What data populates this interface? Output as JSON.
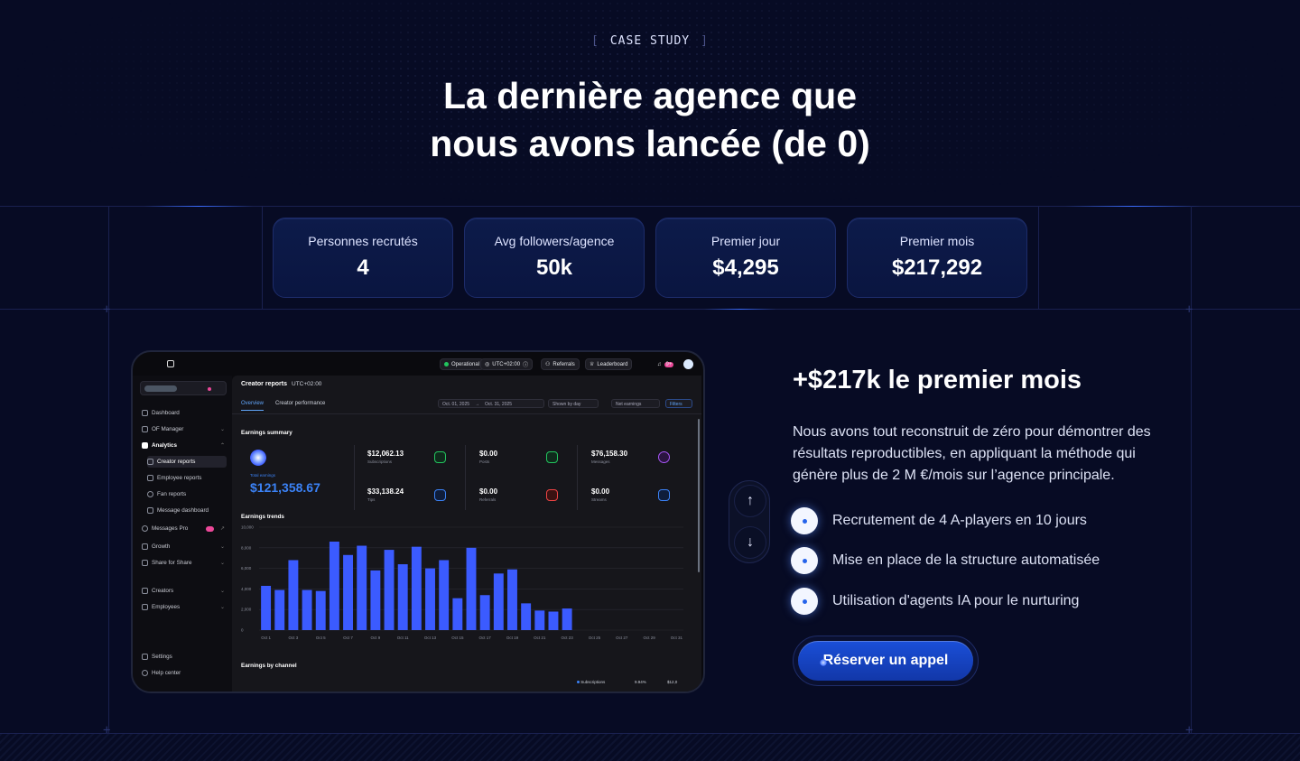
{
  "header": {
    "eyebrow_open": "[",
    "eyebrow": "CASE STUDY",
    "eyebrow_close": "]",
    "title_line1": "La dernière agence que",
    "title_line2": "nous avons lancée (de 0)"
  },
  "stats": [
    {
      "label": "Personnes recrutés",
      "value": "4"
    },
    {
      "label": "Avg followers/agence",
      "value": "50k"
    },
    {
      "label": "Premier jour",
      "value": "$4,295"
    },
    {
      "label": "Premier mois",
      "value": "$217,292"
    }
  ],
  "dashboard": {
    "topbar": {
      "status": "Operational",
      "timezone": "UTC+02:00",
      "referrals": "Referrals",
      "leaderboard": "Leaderboard",
      "notif_count": "9+"
    },
    "sidebar": {
      "items": [
        {
          "label": "Dashboard"
        },
        {
          "label": "OF Manager"
        },
        {
          "label": "Analytics"
        },
        {
          "label": "Creator reports"
        },
        {
          "label": "Employee reports"
        },
        {
          "label": "Fan reports"
        },
        {
          "label": "Message dashboard"
        },
        {
          "label": "Messages Pro"
        },
        {
          "label": "Growth"
        },
        {
          "label": "Share for Share"
        },
        {
          "label": "Creators"
        },
        {
          "label": "Employees"
        },
        {
          "label": "Settings"
        },
        {
          "label": "Help center"
        }
      ]
    },
    "main": {
      "title": "Creator reports",
      "timezone": "UTC+02:00",
      "tabs": [
        "Overview",
        "Creator performance"
      ],
      "date_from": "Oct. 01, 2025",
      "date_to": "Oct. 31, 2025",
      "group_by": "Shown by day",
      "metric": "Net earnings",
      "filters": "Filters",
      "summary_title": "Earnings summary",
      "total_label": "Total earnings",
      "total_value": "$121,358.67",
      "kpis": [
        {
          "value": "$12,062.13",
          "label": "Subscriptions",
          "color": "#22c55e"
        },
        {
          "value": "$0.00",
          "label": "Posts",
          "color": "#22c55e"
        },
        {
          "value": "$76,158.30",
          "label": "Messages",
          "color": "#a855f7"
        },
        {
          "value": "$33,138.24",
          "label": "Tips",
          "color": "#3b82f6"
        },
        {
          "value": "$0.00",
          "label": "Referrals",
          "color": "#ef4444"
        },
        {
          "value": "$0.00",
          "label": "Streams",
          "color": "#3b82f6"
        }
      ],
      "trends_title": "Earnings trends",
      "channel_title": "Earnings by channel",
      "channel_row": {
        "name": "Subscriptions",
        "pct": "9.94%",
        "amount": "$12,0"
      }
    }
  },
  "chart_data": {
    "type": "bar",
    "title": "Earnings trends",
    "ylim": [
      0,
      10000
    ],
    "yticks": [
      "10,000",
      "8,000",
      "6,000",
      "4,000",
      "2,000",
      "0"
    ],
    "xticks": [
      "Oct 1",
      "Oct 3",
      "Oct 5",
      "Oct 7",
      "Oct 9",
      "Oct 11",
      "Oct 13",
      "Oct 15",
      "Oct 17",
      "Oct 19",
      "Oct 21",
      "Oct 23",
      "Oct 25",
      "Oct 27",
      "Oct 29",
      "Oct 31"
    ],
    "values": [
      4300,
      3900,
      6800,
      3900,
      3800,
      8600,
      7300,
      8200,
      5800,
      7800,
      6400,
      8100,
      6000,
      6800,
      3100,
      8000,
      3400,
      5500,
      5900,
      2600,
      1900,
      1800,
      2100,
      0,
      0,
      0,
      0,
      0,
      0,
      0,
      0
    ],
    "grid": true,
    "bar_color": "#3b5bff"
  },
  "arrows": {
    "up": "↑",
    "down": "↓"
  },
  "right": {
    "title": "+$217k le premier mois",
    "description": "Nous avons tout reconstruit de zéro pour démontrer des résultats reproductibles, en appliquant la méthode qui génère plus de 2 M €/mois sur l’agence principale.",
    "bullets": [
      "Recrutement de 4 A-players en 10 jours",
      "Mise en place de la structure automatisée",
      "Utilisation d'agents IA pour le nurturing"
    ],
    "cta": "Réserver un appel"
  }
}
